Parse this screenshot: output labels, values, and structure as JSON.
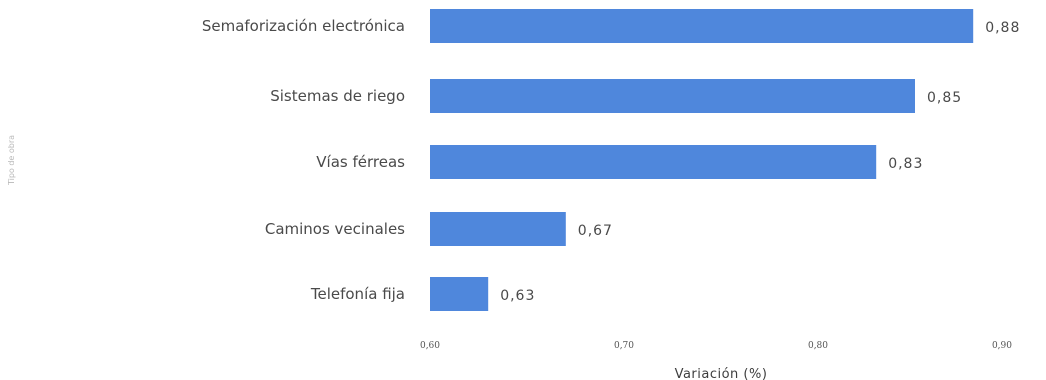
{
  "side_note": "Tipo de obra",
  "chart_data": {
    "type": "bar",
    "orientation": "horizontal",
    "categories": [
      "Semaforización electrónica",
      "Sistemas de riego",
      "Vías férreas",
      "Caminos vecinales",
      "Telefonía fija"
    ],
    "values": [
      0.88,
      0.85,
      0.83,
      0.67,
      0.63
    ],
    "value_labels": [
      "0,88",
      "0,85",
      "0,83",
      "0,67",
      "0,63"
    ],
    "xlabel": "Variación (%)",
    "xlim": [
      0.6,
      0.9
    ],
    "xticks": [
      0.6,
      0.7,
      0.8,
      0.9
    ],
    "xtick_labels": [
      "0,60",
      "0,70",
      "0,80",
      "0,90"
    ],
    "bar_color": "#4f87dc",
    "grid": false,
    "legend": "none"
  }
}
